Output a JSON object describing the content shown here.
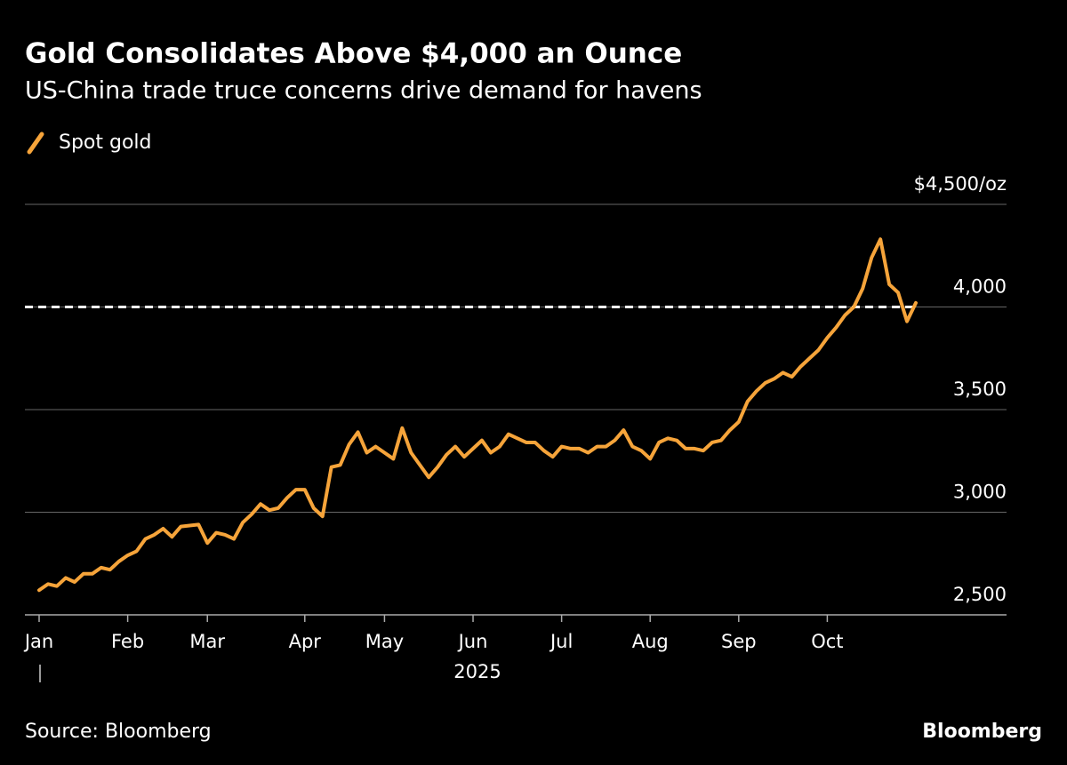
{
  "chart_data": {
    "type": "line",
    "title": "Gold Consolidates Above $4,000 an Ounce",
    "subtitle": "US-China trade truce concerns drive demand for havens",
    "x_label": "2025",
    "source": "Source: Bloomberg",
    "brand": "Bloomberg",
    "categories": [
      "Jan",
      null,
      null,
      null,
      null,
      null,
      null,
      null,
      null,
      null,
      "Feb",
      null,
      null,
      null,
      null,
      null,
      null,
      null,
      null,
      "Mar",
      null,
      null,
      null,
      null,
      null,
      null,
      null,
      null,
      null,
      null,
      "Apr",
      null,
      null,
      null,
      null,
      null,
      null,
      null,
      null,
      "May",
      null,
      null,
      null,
      null,
      null,
      null,
      null,
      null,
      null,
      "Jun",
      null,
      null,
      null,
      null,
      null,
      null,
      null,
      null,
      null,
      "Jul",
      null,
      null,
      null,
      null,
      null,
      null,
      null,
      null,
      null,
      "Aug",
      null,
      null,
      null,
      null,
      null,
      null,
      null,
      null,
      null,
      "Sep",
      null,
      null,
      null,
      null,
      null,
      null,
      null,
      null,
      null,
      "Oct",
      null,
      null,
      null,
      null,
      null,
      null,
      null,
      null,
      null,
      null
    ],
    "series": [
      {
        "name": "Spot gold",
        "color": "#f6a43a",
        "values": [
          2620,
          2650,
          2640,
          2680,
          2660,
          2700,
          2700,
          2730,
          2720,
          2760,
          2790,
          2810,
          2870,
          2890,
          2920,
          2880,
          2930,
          2935,
          2940,
          2850,
          2900,
          2890,
          2870,
          2950,
          2990,
          3040,
          3010,
          3020,
          3070,
          3110,
          3110,
          3020,
          2980,
          3220,
          3230,
          3330,
          3390,
          3290,
          3320,
          3290,
          3260,
          3410,
          3290,
          3230,
          3170,
          3220,
          3280,
          3320,
          3270,
          3310,
          3350,
          3290,
          3320,
          3380,
          3360,
          3340,
          3340,
          3300,
          3270,
          3320,
          3310,
          3310,
          3290,
          3320,
          3320,
          3350,
          3400,
          3320,
          3300,
          3260,
          3340,
          3360,
          3350,
          3310,
          3310,
          3300,
          3340,
          3350,
          3400,
          3440,
          3540,
          3590,
          3630,
          3650,
          3680,
          3660,
          3710,
          3750,
          3790,
          3850,
          3900,
          3960,
          4000,
          4090,
          4240,
          4330,
          4110,
          4070,
          3930,
          4020
        ]
      }
    ],
    "reference_line": 4000,
    "ylim": [
      2500,
      4500
    ],
    "yticks": [
      {
        "value": 2500,
        "label": "2,500"
      },
      {
        "value": 3000,
        "label": "3,000"
      },
      {
        "value": 3500,
        "label": "3,500"
      },
      {
        "value": 4000,
        "label": "4,000"
      },
      {
        "value": 4500,
        "label": "$4,500/oz"
      }
    ],
    "grid": true,
    "legend": "top-left"
  }
}
